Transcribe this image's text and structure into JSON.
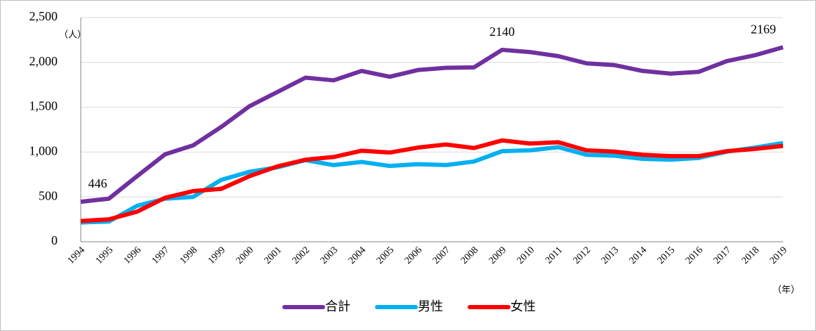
{
  "chart_data": {
    "type": "line",
    "y_unit": "（人）",
    "x_unit": "（年）",
    "categories": [
      "1994",
      "1995",
      "1996",
      "1997",
      "1998",
      "1999",
      "2000",
      "2001",
      "2002",
      "2003",
      "2004",
      "2005",
      "2006",
      "2007",
      "2008",
      "2009",
      "2010",
      "2011",
      "2012",
      "2013",
      "2014",
      "2015",
      "2016",
      "2017",
      "2018",
      "2019"
    ],
    "series": [
      {
        "name": "合計",
        "color": "#7030a0",
        "values": [
          446,
          480,
          730,
          975,
          1075,
          1280,
          1510,
          1670,
          1830,
          1800,
          1905,
          1840,
          1915,
          1940,
          1945,
          2140,
          2115,
          2070,
          1990,
          1970,
          1905,
          1875,
          1895,
          2015,
          2080,
          2169
        ],
        "value_labels": [
          "446",
          null,
          null,
          null,
          null,
          null,
          null,
          null,
          null,
          null,
          null,
          null,
          null,
          null,
          null,
          "2140",
          null,
          null,
          null,
          null,
          null,
          null,
          null,
          null,
          null,
          "2169"
        ]
      },
      {
        "name": "男性",
        "color": "#00b0f0",
        "values": [
          215,
          225,
          400,
          480,
          500,
          690,
          780,
          830,
          910,
          855,
          890,
          845,
          865,
          855,
          895,
          1010,
          1020,
          1055,
          970,
          960,
          925,
          915,
          935,
          1005,
          1050,
          1100
        ]
      },
      {
        "name": "女性",
        "color": "#ff0000",
        "values": [
          231,
          250,
          335,
          490,
          565,
          590,
          730,
          840,
          915,
          945,
          1015,
          995,
          1050,
          1085,
          1045,
          1130,
          1095,
          1110,
          1020,
          1005,
          970,
          955,
          955,
          1010,
          1035,
          1069
        ]
      }
    ],
    "ylim": [
      0,
      2500
    ],
    "yticks": [
      0,
      500,
      {
        "value": 1000,
        "label": "1,000"
      },
      {
        "value": 1500,
        "label": "1,500"
      },
      {
        "value": 2000,
        "label": "2,000"
      },
      {
        "value": 2500,
        "label": "2,500"
      }
    ],
    "grid": true,
    "legend": "bottom"
  }
}
